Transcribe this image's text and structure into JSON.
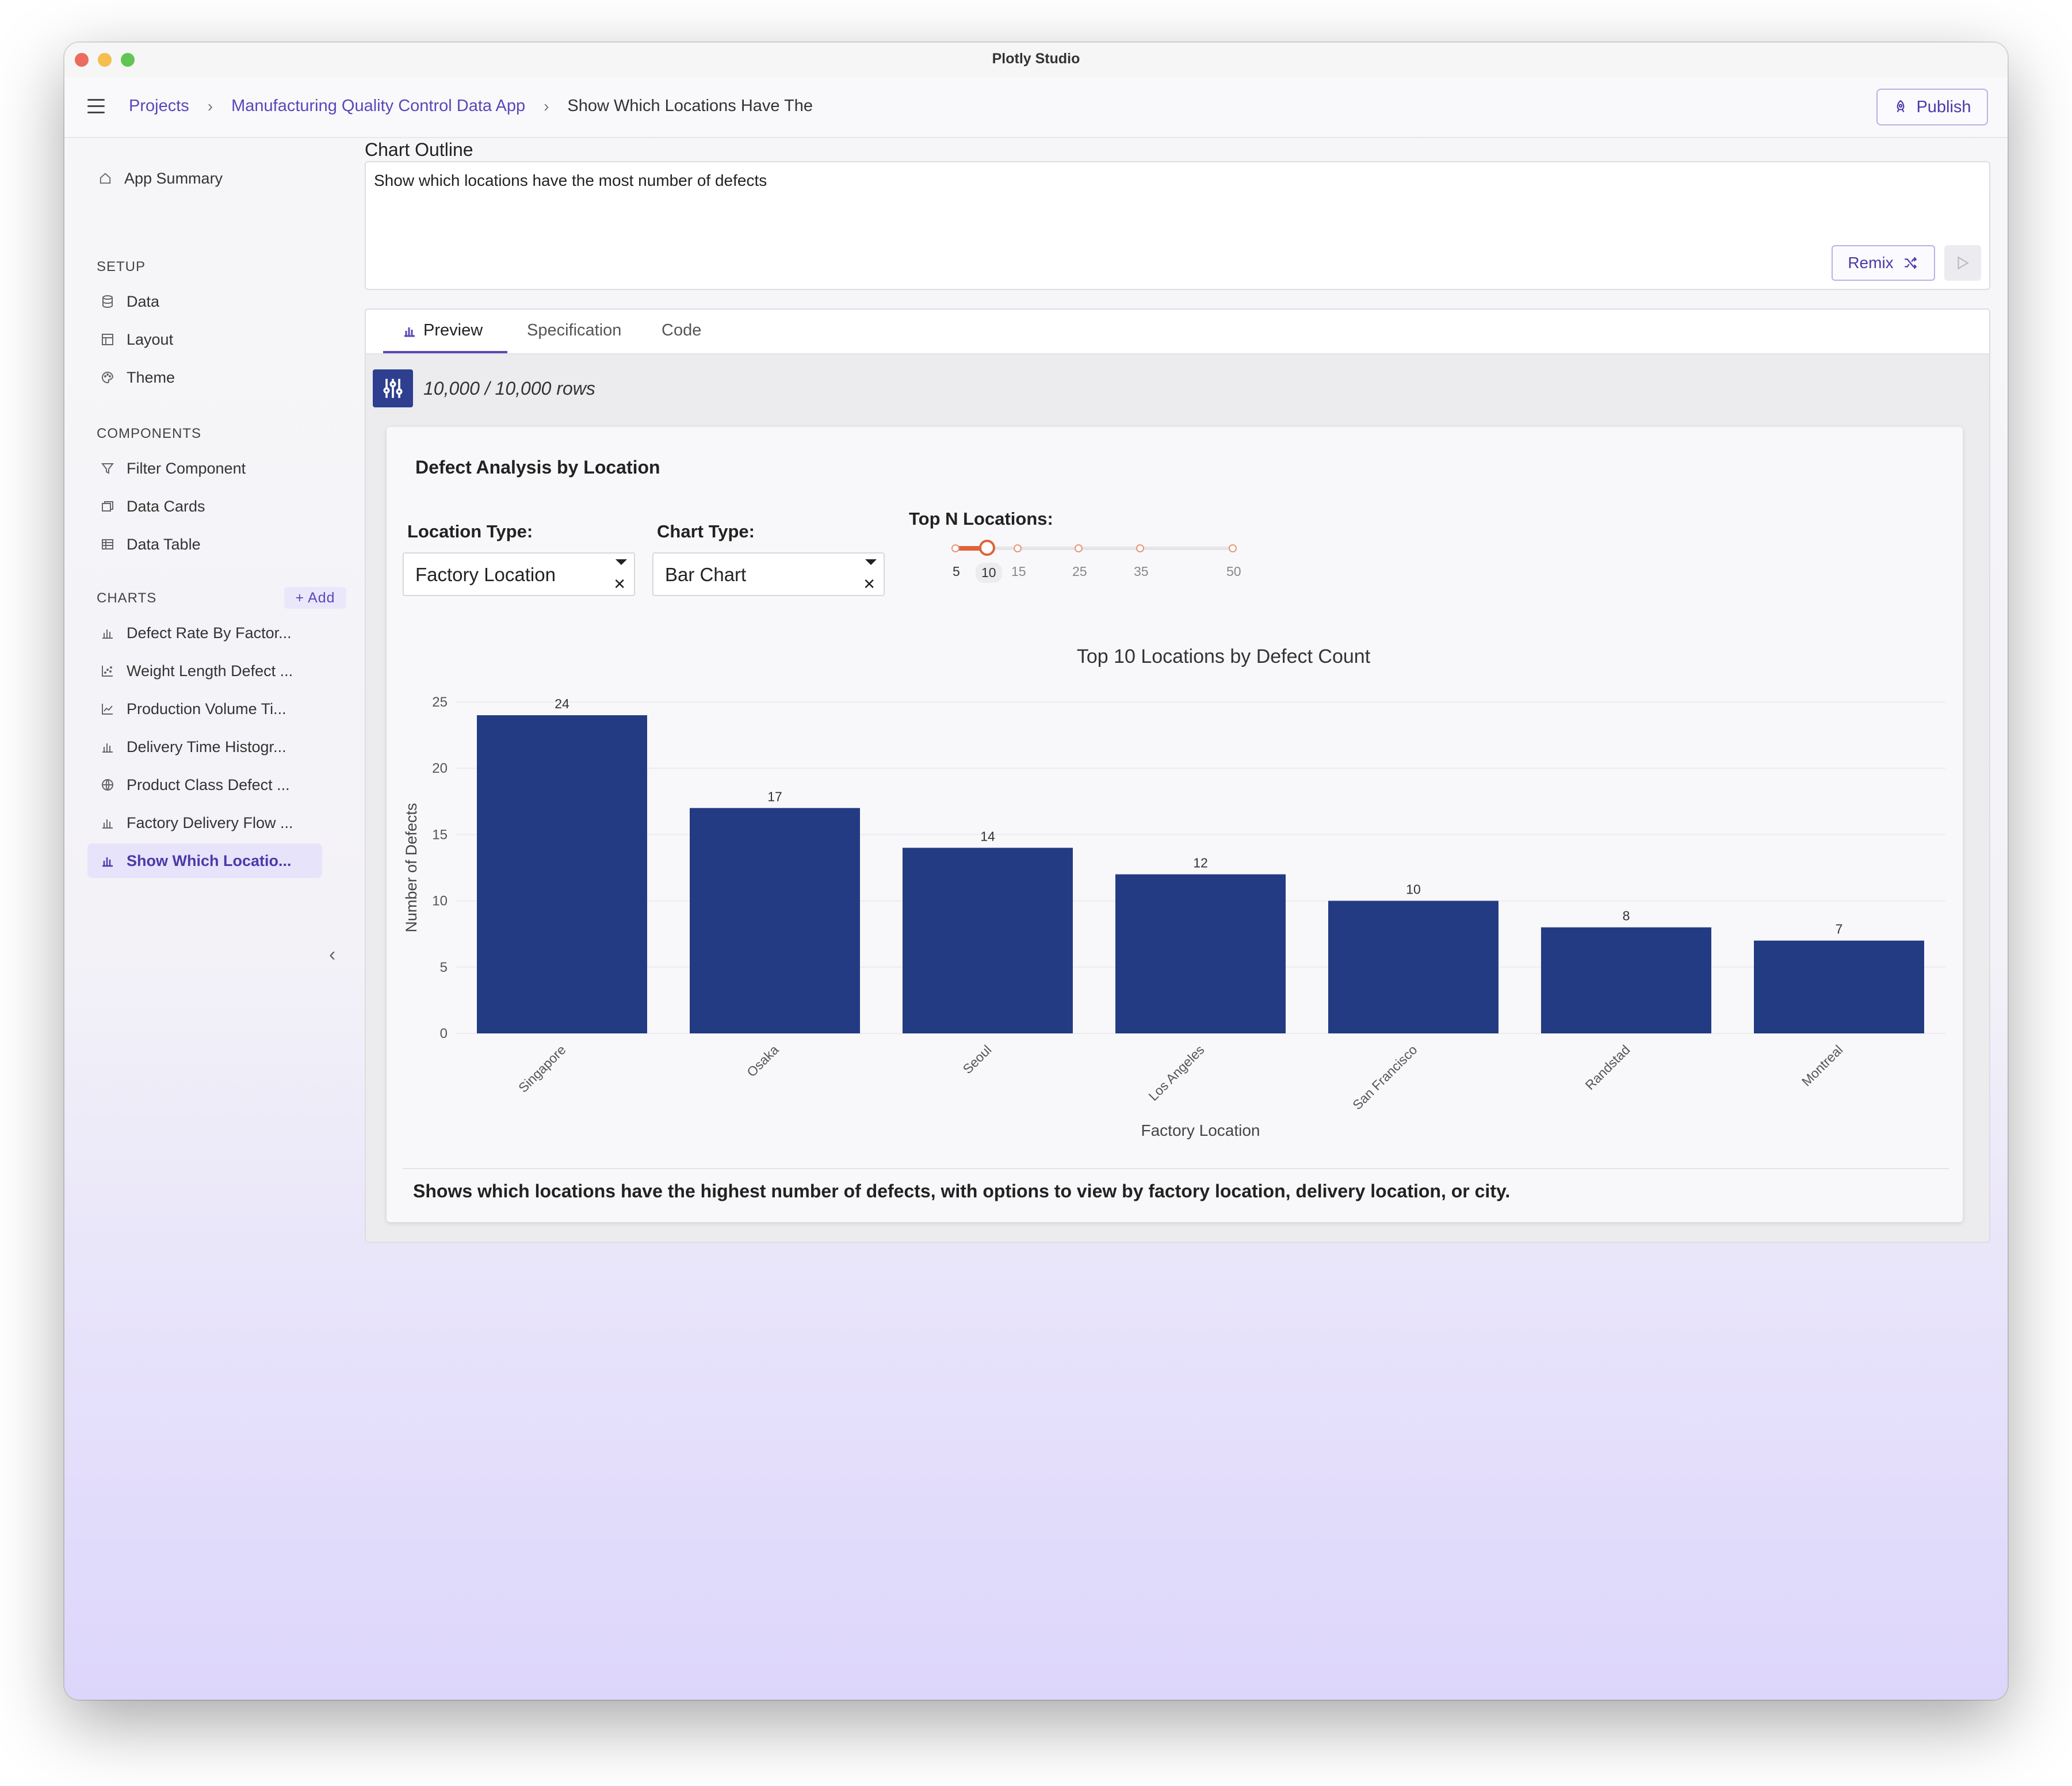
{
  "window": {
    "title": "Plotly Studio"
  },
  "breadcrumb": {
    "items": [
      "Projects",
      "Manufacturing Quality Control Data App",
      "Show Which Locations Have The"
    ]
  },
  "publish_label": "Publish",
  "sidebar": {
    "app_summary": "App Summary",
    "setup_heading": "SETUP",
    "setup_items": [
      "Data",
      "Layout",
      "Theme"
    ],
    "components_heading": "COMPONENTS",
    "component_items": [
      "Filter Component",
      "Data Cards",
      "Data Table"
    ],
    "charts_heading": "CHARTS",
    "add_label": "Add",
    "chart_items": [
      "Defect Rate By Factor...",
      "Weight Length Defect ...",
      "Production Volume Ti...",
      "Delivery Time Histogr...",
      "Product Class Defect ...",
      "Factory Delivery Flow ...",
      "Show Which Locatio..."
    ]
  },
  "outline": {
    "label": "Chart Outline",
    "text": "Show which locations have the most number of defects",
    "remix_label": "Remix"
  },
  "tabs": [
    "Preview",
    "Specification",
    "Code"
  ],
  "rows_text": "10,000 / 10,000 rows",
  "card": {
    "title": "Defect Analysis by Location",
    "location_type_label": "Location Type:",
    "location_type_value": "Factory Location",
    "chart_type_label": "Chart Type:",
    "chart_type_value": "Bar Chart",
    "topn_label": "Top N Locations:",
    "topn_marks": [
      "5",
      "10",
      "15",
      "25",
      "35",
      "50"
    ],
    "topn_value": 10,
    "description": "Shows which locations have the highest number of defects, with options to view by factory location, delivery location, or city."
  },
  "colors": {
    "bar": "#233b82",
    "accent": "#5b47b8",
    "slider": "#e0623b"
  },
  "chart_data": {
    "type": "bar",
    "title": "Top 10 Locations by Defect Count",
    "xlabel": "Factory Location",
    "ylabel": "Number of Defects",
    "categories": [
      "Singapore",
      "Osaka",
      "Seoul",
      "Los Angeles",
      "San Francisco",
      "Randstad",
      "Montreal"
    ],
    "values": [
      24,
      17,
      14,
      12,
      10,
      8,
      7
    ],
    "yticks": [
      0,
      5,
      10,
      15,
      20,
      25
    ],
    "ylim": [
      0,
      25
    ],
    "grid": true,
    "data_labels": true
  }
}
